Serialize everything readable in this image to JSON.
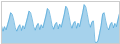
{
  "chart_data": {
    "type": "area",
    "values": [
      55000,
      38000,
      52000,
      42000,
      58000,
      75000,
      95000,
      90000,
      72000,
      48000,
      38000,
      50000,
      58000,
      40000,
      55000,
      45000,
      62000,
      80000,
      100000,
      95000,
      76000,
      52000,
      41000,
      54000,
      62000,
      43000,
      58000,
      48000,
      66000,
      85000,
      108000,
      102000,
      81000,
      56000,
      44000,
      58000,
      65000,
      45000,
      60000,
      50000,
      70000,
      90000,
      115000,
      108000,
      86000,
      60000,
      47000,
      62000,
      68000,
      47000,
      63000,
      52000,
      74000,
      95000,
      120000,
      113000,
      90000,
      63000,
      50000,
      65000,
      70000,
      5000,
      2000,
      8000,
      30000,
      55000,
      90000,
      95000,
      70000,
      50000,
      42000,
      58000,
      65000,
      48000,
      62000,
      52000,
      72000,
      92000
    ],
    "color": "#4da6d9",
    "xlim": [
      0,
      77
    ],
    "ylim": [
      0,
      129600
    ],
    "grid": false,
    "tick_labels": false
  }
}
